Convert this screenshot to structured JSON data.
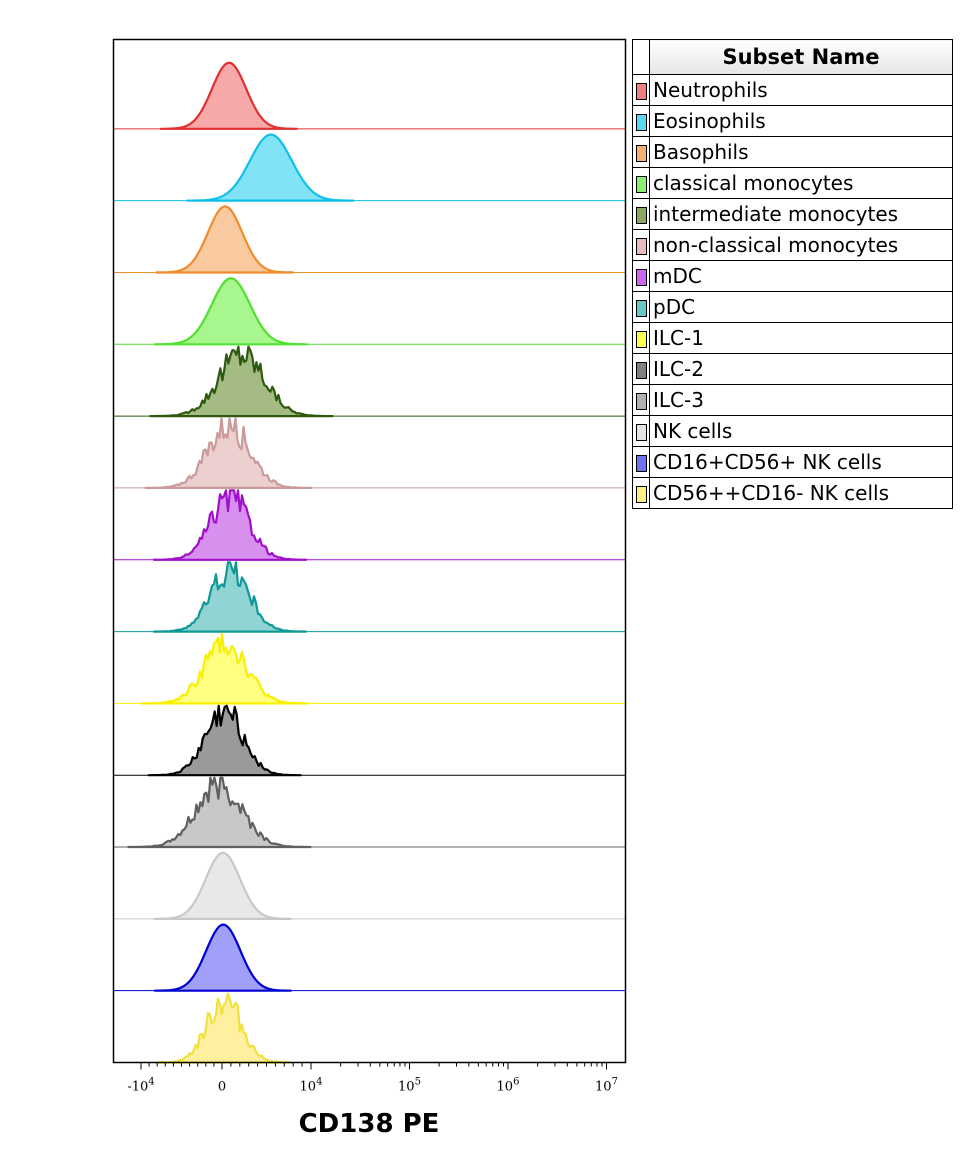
{
  "chart_data": {
    "type": "histogram-overlay",
    "xlabel": "CD138 PE",
    "x_scale": "biexponential",
    "x_ticks": [
      {
        "value": -10000,
        "base": "-10",
        "exp": "4"
      },
      {
        "value": 0,
        "base": "0",
        "exp": ""
      },
      {
        "value": 10000,
        "base": "10",
        "exp": "4"
      },
      {
        "value": 100000,
        "base": "10",
        "exp": "5"
      },
      {
        "value": 1000000,
        "base": "10",
        "exp": "6"
      },
      {
        "value": 10000000,
        "base": "10",
        "exp": "7"
      }
    ],
    "legend_header": "Subset Name",
    "legend_position": "right",
    "series": [
      {
        "name": "Neutrophils",
        "color": "#f08080",
        "stroke": "#e03030",
        "fill": "#f7a8a8",
        "peak_x": 800,
        "spread": 0.45,
        "noisy": false
      },
      {
        "name": "Eosinophils",
        "color": "#5ad8f0",
        "stroke": "#10c0e8",
        "fill": "#80e4f6",
        "peak_x": 5500,
        "spread": 0.55,
        "noisy": false
      },
      {
        "name": "Basophils",
        "color": "#f6b070",
        "stroke": "#f08c2c",
        "fill": "#f9caa0",
        "peak_x": 350,
        "spread": 0.45,
        "noisy": false
      },
      {
        "name": "classical monocytes",
        "color": "#88f070",
        "stroke": "#50e030",
        "fill": "#a8f68e",
        "peak_x": 1000,
        "spread": 0.5,
        "noisy": false
      },
      {
        "name": "intermediate monocytes",
        "color": "#8aa860",
        "stroke": "#2e5a10",
        "fill": "#a4bc84",
        "peak_x": 2200,
        "spread": 0.6,
        "noisy": true
      },
      {
        "name": "non-classical monocytes",
        "color": "#e6bcbc",
        "stroke": "#cc9a9a",
        "fill": "#ecd0d0",
        "peak_x": 800,
        "spread": 0.55,
        "noisy": true
      },
      {
        "name": "mDC",
        "color": "#cc66ee",
        "stroke": "#a010c8",
        "fill": "#d890ee",
        "peak_x": 900,
        "spread": 0.5,
        "noisy": true
      },
      {
        "name": "pDC",
        "color": "#66c8c8",
        "stroke": "#109898",
        "fill": "#90d4d4",
        "peak_x": 900,
        "spread": 0.5,
        "noisy": true
      },
      {
        "name": "ILC-1",
        "color": "#ffff50",
        "stroke": "#f8f000",
        "fill": "#ffff80",
        "peak_x": 400,
        "spread": 0.55,
        "noisy": true
      },
      {
        "name": "ILC-2",
        "color": "#808080",
        "stroke": "#000000",
        "fill": "#9a9a9a",
        "peak_x": 300,
        "spread": 0.5,
        "noisy": true
      },
      {
        "name": "ILC-3",
        "color": "#b0b0b0",
        "stroke": "#606060",
        "fill": "#c8c8c8",
        "peak_x": -300,
        "spread": 0.6,
        "noisy": true
      },
      {
        "name": "NK cells",
        "color": "#e4e4e4",
        "stroke": "#c8c8c8",
        "fill": "#e8e8e8",
        "peak_x": 100,
        "spread": 0.45,
        "noisy": false
      },
      {
        "name": "CD16+CD56+ NK cells",
        "color": "#7070f0",
        "stroke": "#0000d0",
        "fill": "#a0a0f8",
        "peak_x": 150,
        "spread": 0.45,
        "noisy": false
      },
      {
        "name": "CD56++CD16- NK cells",
        "color": "#fff080",
        "stroke": "#f0e040",
        "fill": "#fff0a0",
        "peak_x": 250,
        "spread": 0.45,
        "noisy": true
      }
    ]
  }
}
